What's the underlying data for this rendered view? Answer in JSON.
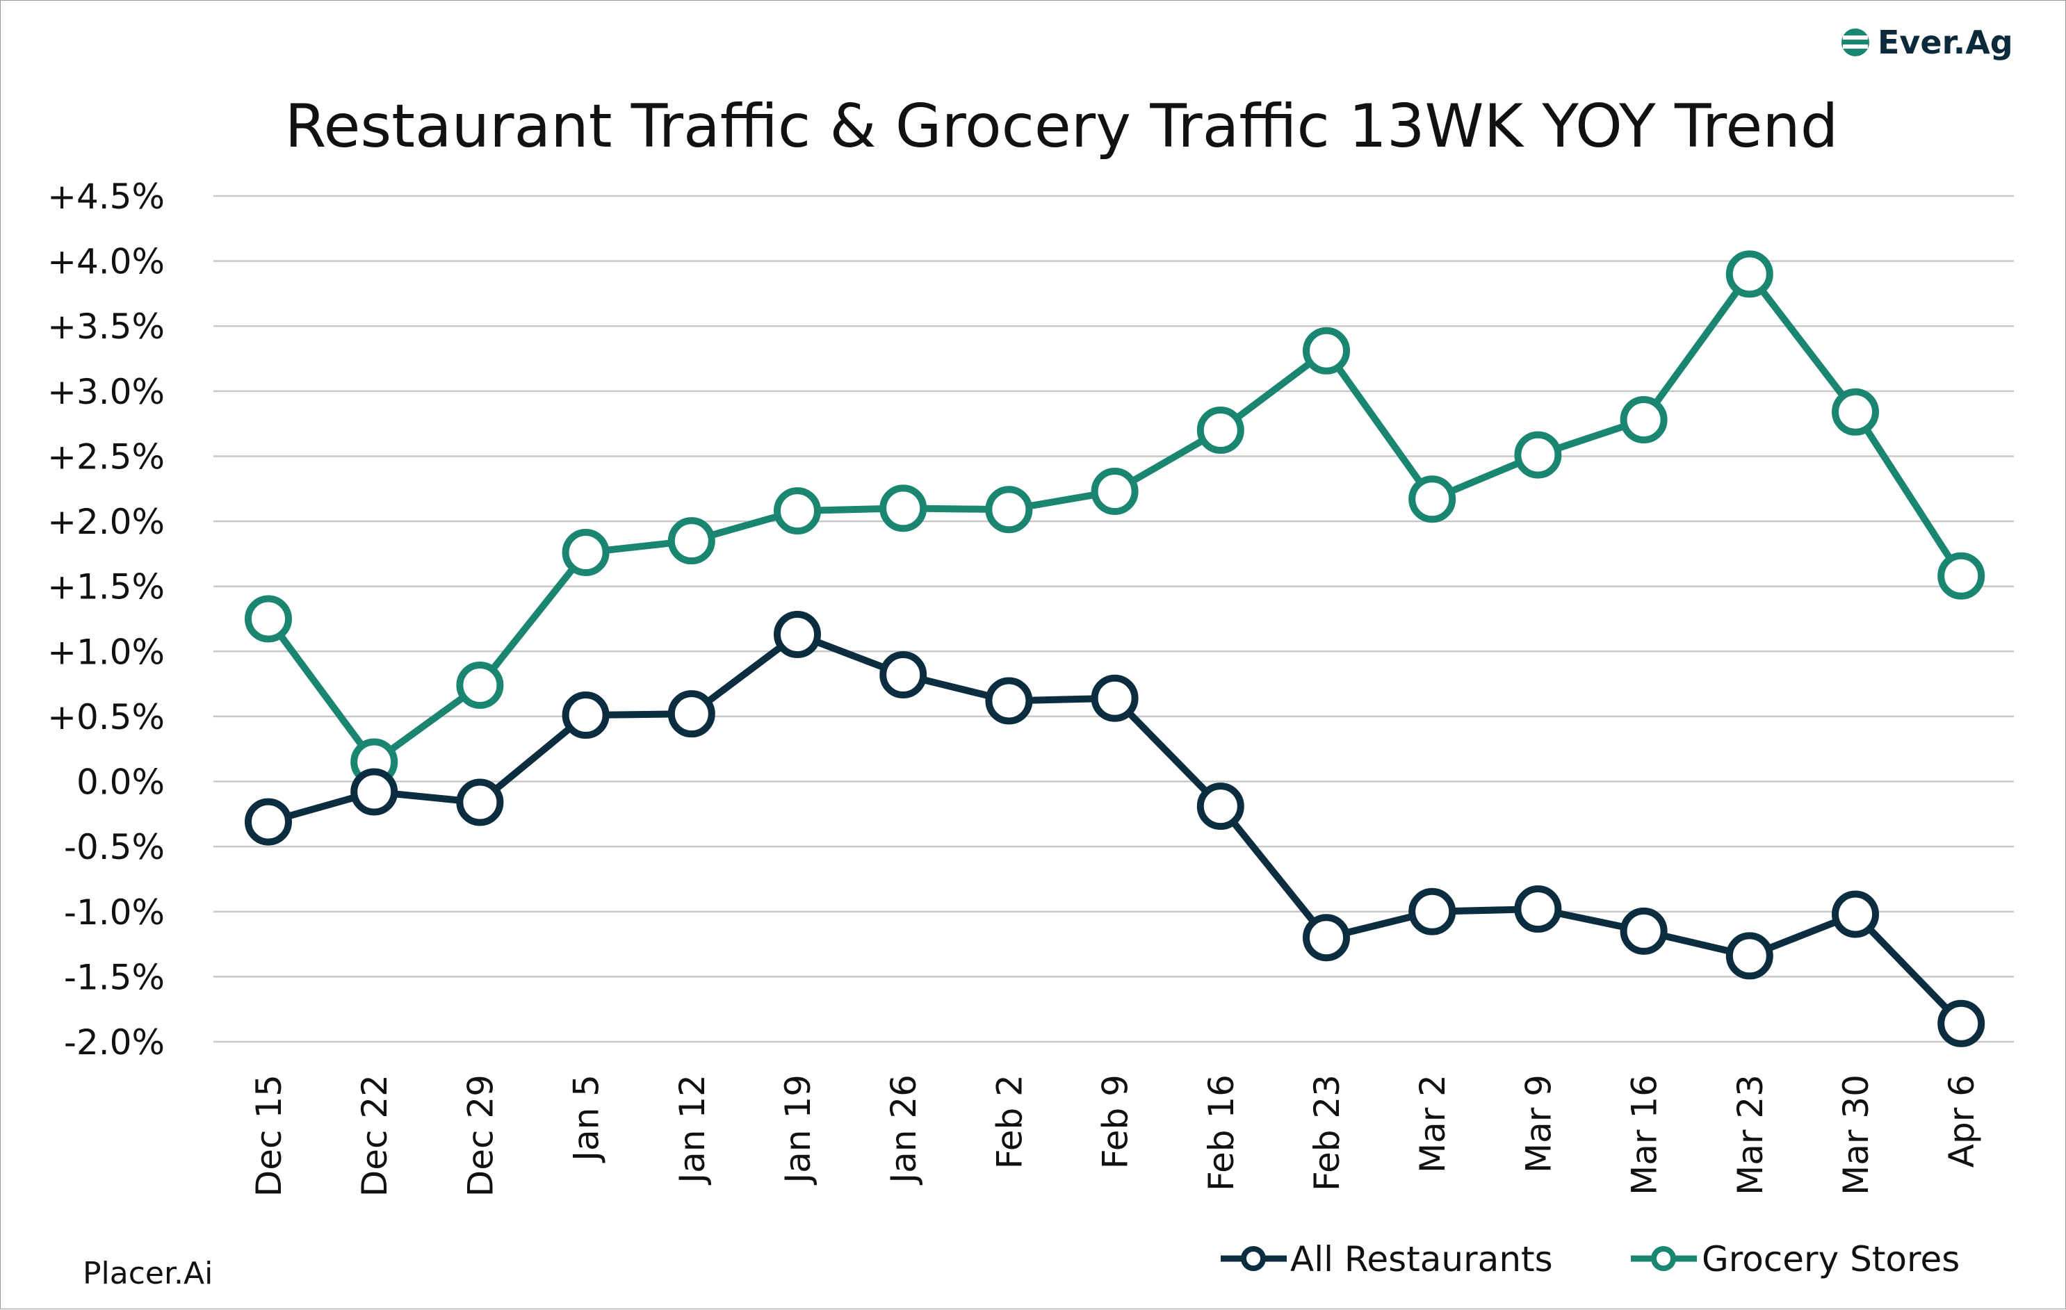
{
  "brand": {
    "name": "Ever.Ag"
  },
  "source": "Placer.Ai",
  "colors": {
    "restaurants": "#0c2d40",
    "grocery": "#1a8571",
    "grid": "#c8c8c8",
    "brand_green": "#1a8571"
  },
  "chart_data": {
    "type": "line",
    "title": "Restaurant Traffic & Grocery Traffic 13WK YOY Trend",
    "xlabel": "",
    "ylabel": "",
    "ylim": [
      -2.0,
      4.5
    ],
    "yticks": [
      "+4.5%",
      "+4.0%",
      "+3.5%",
      "+3.0%",
      "+2.5%",
      "+2.0%",
      "+1.5%",
      "+1.0%",
      "+0.5%",
      "0.0%",
      "-0.5%",
      "-1.0%",
      "-1.5%",
      "-2.0%"
    ],
    "categories": [
      "Dec 15",
      "Dec 22",
      "Dec 29",
      "Jan 5",
      "Jan 12",
      "Jan 19",
      "Jan 26",
      "Feb 2",
      "Feb 9",
      "Feb 16",
      "Feb 23",
      "Mar 2",
      "Mar 9",
      "Mar 16",
      "Mar 23",
      "Mar 30",
      "Apr 6"
    ],
    "grid": true,
    "legend_position": "bottom-right",
    "series": [
      {
        "name": "All Restaurants",
        "values": [
          -0.31,
          -0.08,
          -0.16,
          0.51,
          0.52,
          1.13,
          0.82,
          0.62,
          0.64,
          -0.19,
          -1.2,
          -1.0,
          -0.98,
          -1.15,
          -1.34,
          -1.02,
          -1.86
        ]
      },
      {
        "name": "Grocery Stores",
        "values": [
          1.25,
          0.15,
          0.74,
          1.76,
          1.85,
          2.08,
          2.1,
          2.09,
          2.23,
          2.7,
          3.31,
          2.17,
          2.51,
          2.78,
          3.9,
          2.84,
          1.58
        ]
      }
    ]
  }
}
